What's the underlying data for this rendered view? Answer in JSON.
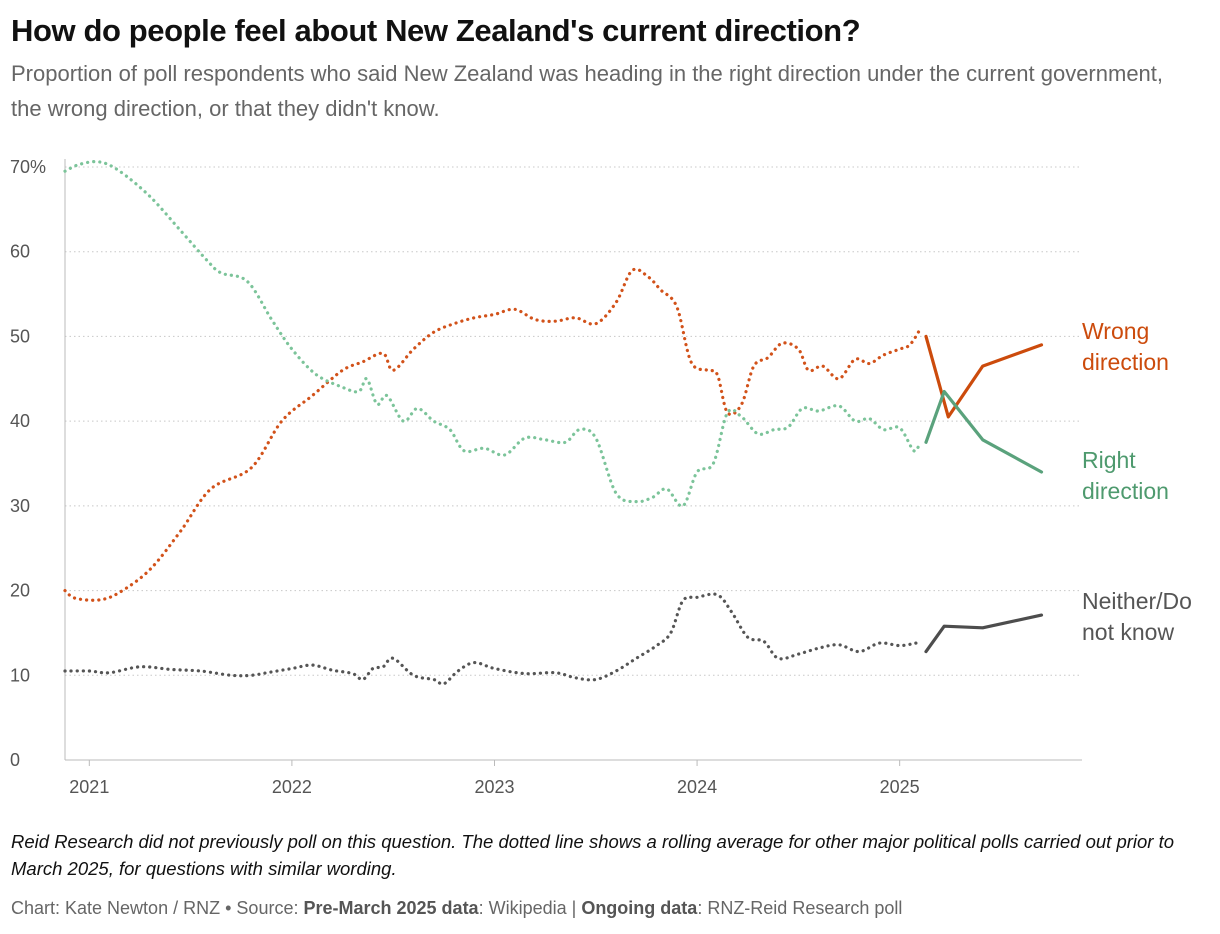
{
  "header": {
    "title": "How do people feel about New Zealand's current direction?",
    "subtitle": "Proportion of poll respondents who said New Zealand was heading in the right direction under the current government, the wrong direction, or that they didn't know."
  },
  "footer": {
    "note": "Reid Research did not previously poll on this question. The dotted line shows a rolling average for other major political polls carried out prior to March 2025, for questions with similar wording.",
    "chart_prefix": "Chart: Kate Newton / RNZ",
    "separator": "•",
    "source_prefix": "Source:",
    "pre_label": "Pre-March 2025 data",
    "pre_value": ": Wikipedia |",
    "ongoing_label": "Ongoing data",
    "ongoing_value": ": RNZ-Reid Research poll"
  },
  "chart_data": {
    "type": "line",
    "title": "How do people feel about New Zealand's current direction?",
    "subtitle": "Proportion of poll respondents who said New Zealand was heading in the right direction under the current government, the wrong direction, or that they didn't know.",
    "xlabel": "",
    "ylabel": "",
    "xlim": [
      2020.88,
      2025.9
    ],
    "ylim": [
      0,
      70
    ],
    "x_ticks": [
      2021,
      2022,
      2023,
      2024,
      2025
    ],
    "x_tick_labels": [
      "2021",
      "2022",
      "2023",
      "2024",
      "2025"
    ],
    "y_ticks": [
      0,
      10,
      20,
      30,
      40,
      50,
      60,
      70
    ],
    "y_tick_labels": [
      "0",
      "10",
      "20",
      "30",
      "40",
      "50",
      "60",
      "70%"
    ],
    "grid": true,
    "legend": "direct labels at right end of lines",
    "series": [
      {
        "name": "Wrong direction",
        "color": "#cc4b0c",
        "rolling_average": [
          [
            2020.88,
            20.0
          ],
          [
            2020.93,
            19.1
          ],
          [
            2021.05,
            18.9
          ],
          [
            2021.15,
            19.8
          ],
          [
            2021.3,
            22.5
          ],
          [
            2021.45,
            27.0
          ],
          [
            2021.6,
            32.0
          ],
          [
            2021.8,
            34.5
          ],
          [
            2021.95,
            40.0
          ],
          [
            2022.1,
            43.0
          ],
          [
            2022.25,
            46.0
          ],
          [
            2022.35,
            47.0
          ],
          [
            2022.45,
            48.0
          ],
          [
            2022.5,
            46.0
          ],
          [
            2022.6,
            48.5
          ],
          [
            2022.7,
            50.5
          ],
          [
            2022.8,
            51.5
          ],
          [
            2022.9,
            52.2
          ],
          [
            2023.0,
            52.6
          ],
          [
            2023.1,
            53.2
          ],
          [
            2023.2,
            52.0
          ],
          [
            2023.3,
            51.8
          ],
          [
            2023.4,
            52.2
          ],
          [
            2023.5,
            51.5
          ],
          [
            2023.6,
            54.0
          ],
          [
            2023.68,
            57.8
          ],
          [
            2023.76,
            57.0
          ],
          [
            2023.82,
            55.5
          ],
          [
            2023.9,
            53.5
          ],
          [
            2023.97,
            47.0
          ],
          [
            2024.05,
            46.0
          ],
          [
            2024.1,
            45.5
          ],
          [
            2024.15,
            41.0
          ],
          [
            2024.22,
            42.0
          ],
          [
            2024.28,
            46.5
          ],
          [
            2024.35,
            47.5
          ],
          [
            2024.42,
            49.2
          ],
          [
            2024.5,
            48.5
          ],
          [
            2024.55,
            46.0
          ],
          [
            2024.62,
            46.5
          ],
          [
            2024.7,
            45.0
          ],
          [
            2024.78,
            47.3
          ],
          [
            2024.85,
            46.8
          ],
          [
            2024.92,
            47.8
          ],
          [
            2025.0,
            48.5
          ],
          [
            2025.05,
            49.0
          ],
          [
            2025.1,
            50.8
          ]
        ],
        "poll": [
          [
            2025.13,
            50.0
          ],
          [
            2025.24,
            40.5
          ],
          [
            2025.41,
            46.5
          ],
          [
            2025.7,
            49.0
          ]
        ]
      },
      {
        "name": "Right direction",
        "color": "#5aa27c",
        "rolling_average": [
          [
            2020.88,
            69.5
          ],
          [
            2020.95,
            70.3
          ],
          [
            2021.05,
            70.6
          ],
          [
            2021.15,
            69.5
          ],
          [
            2021.3,
            66.5
          ],
          [
            2021.45,
            62.5
          ],
          [
            2021.58,
            59.0
          ],
          [
            2021.65,
            57.5
          ],
          [
            2021.78,
            56.5
          ],
          [
            2021.9,
            52.0
          ],
          [
            2022.0,
            48.5
          ],
          [
            2022.12,
            45.5
          ],
          [
            2022.25,
            44.0
          ],
          [
            2022.33,
            43.5
          ],
          [
            2022.37,
            45.0
          ],
          [
            2022.42,
            42.0
          ],
          [
            2022.47,
            43.0
          ],
          [
            2022.55,
            40.0
          ],
          [
            2022.62,
            41.5
          ],
          [
            2022.7,
            40.0
          ],
          [
            2022.78,
            39.0
          ],
          [
            2022.85,
            36.5
          ],
          [
            2022.95,
            36.8
          ],
          [
            2023.05,
            36.0
          ],
          [
            2023.15,
            38.0
          ],
          [
            2023.25,
            37.8
          ],
          [
            2023.35,
            37.5
          ],
          [
            2023.42,
            39.0
          ],
          [
            2023.5,
            38.0
          ],
          [
            2023.6,
            31.5
          ],
          [
            2023.7,
            30.5
          ],
          [
            2023.78,
            31.0
          ],
          [
            2023.85,
            32.0
          ],
          [
            2023.93,
            30.0
          ],
          [
            2024.0,
            34.0
          ],
          [
            2024.08,
            35.0
          ],
          [
            2024.15,
            41.0
          ],
          [
            2024.22,
            40.5
          ],
          [
            2024.3,
            38.5
          ],
          [
            2024.38,
            39.0
          ],
          [
            2024.45,
            39.3
          ],
          [
            2024.52,
            41.5
          ],
          [
            2024.6,
            41.2
          ],
          [
            2024.7,
            41.8
          ],
          [
            2024.78,
            40.0
          ],
          [
            2024.85,
            40.3
          ],
          [
            2024.92,
            39.0
          ],
          [
            2025.0,
            39.2
          ],
          [
            2025.07,
            36.5
          ],
          [
            2025.1,
            37.5
          ]
        ],
        "poll": [
          [
            2025.13,
            37.5
          ],
          [
            2025.22,
            43.5
          ],
          [
            2025.41,
            37.8
          ],
          [
            2025.7,
            34.0
          ]
        ]
      },
      {
        "name": "Neither/Do not know",
        "color": "#4d4d4d",
        "rolling_average": [
          [
            2020.88,
            10.5
          ],
          [
            2021.0,
            10.5
          ],
          [
            2021.1,
            10.3
          ],
          [
            2021.25,
            11.0
          ],
          [
            2021.4,
            10.7
          ],
          [
            2021.55,
            10.5
          ],
          [
            2021.7,
            10.0
          ],
          [
            2021.8,
            10.0
          ],
          [
            2021.9,
            10.4
          ],
          [
            2022.0,
            10.8
          ],
          [
            2022.1,
            11.2
          ],
          [
            2022.2,
            10.6
          ],
          [
            2022.3,
            10.2
          ],
          [
            2022.35,
            9.5
          ],
          [
            2022.4,
            10.8
          ],
          [
            2022.45,
            11.0
          ],
          [
            2022.5,
            12.0
          ],
          [
            2022.6,
            10.0
          ],
          [
            2022.7,
            9.5
          ],
          [
            2022.75,
            9.0
          ],
          [
            2022.82,
            10.5
          ],
          [
            2022.9,
            11.5
          ],
          [
            2023.0,
            10.8
          ],
          [
            2023.15,
            10.2
          ],
          [
            2023.3,
            10.3
          ],
          [
            2023.4,
            9.7
          ],
          [
            2023.5,
            9.5
          ],
          [
            2023.6,
            10.5
          ],
          [
            2023.7,
            12.0
          ],
          [
            2023.8,
            13.5
          ],
          [
            2023.87,
            15.0
          ],
          [
            2023.93,
            18.8
          ],
          [
            2024.0,
            19.2
          ],
          [
            2024.1,
            19.5
          ],
          [
            2024.17,
            17.5
          ],
          [
            2024.25,
            14.5
          ],
          [
            2024.33,
            14.0
          ],
          [
            2024.4,
            12.0
          ],
          [
            2024.5,
            12.5
          ],
          [
            2024.6,
            13.2
          ],
          [
            2024.7,
            13.6
          ],
          [
            2024.8,
            12.8
          ],
          [
            2024.9,
            13.8
          ],
          [
            2025.0,
            13.5
          ],
          [
            2025.08,
            13.8
          ]
        ],
        "poll": [
          [
            2025.13,
            12.8
          ],
          [
            2025.22,
            15.8
          ],
          [
            2025.41,
            15.6
          ],
          [
            2025.7,
            17.1
          ]
        ]
      }
    ],
    "series_labels": [
      [
        "Wrong",
        "direction"
      ],
      [
        "Right",
        "direction"
      ],
      [
        "Neither/Do",
        "not know"
      ]
    ]
  }
}
